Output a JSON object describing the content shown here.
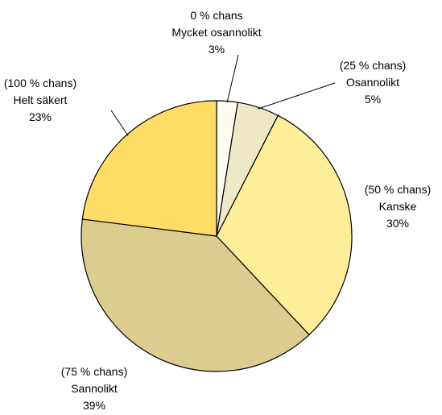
{
  "chart_data": {
    "type": "pie",
    "title": "",
    "start_angle_deg": 0,
    "direction": "clockwise",
    "slices": [
      {
        "lines": [
          "0 % chans",
          "Mycket osannolikt"
        ],
        "percent_label": "3%",
        "value": 2.5,
        "color": "#FFFBEF"
      },
      {
        "lines": [
          "(25 % chans)",
          "Osannolikt"
        ],
        "percent_label": "5%",
        "value": 5,
        "color": "#EEE7C8"
      },
      {
        "lines": [
          "(50 % chans)",
          "Kanske"
        ],
        "percent_label": "30%",
        "value": 30.5,
        "color": "#FFEE99"
      },
      {
        "lines": [
          "(75 % chans)",
          "Sannolikt"
        ],
        "percent_label": "39%",
        "value": 39,
        "color": "#DDCC90"
      },
      {
        "lines": [
          "(100 % chans)",
          "Helt säkert"
        ],
        "percent_label": "23%",
        "value": 23,
        "color": "#FFDC66"
      }
    ],
    "legend": "none"
  }
}
